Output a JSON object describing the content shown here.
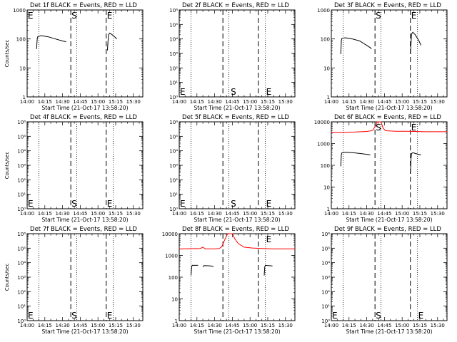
{
  "colors": {
    "events": "#000000",
    "lld": "#ff0000",
    "background": "#ffffff"
  },
  "x_axis": {
    "min_minutes": 0,
    "max_minutes": 98,
    "tick_minutes": [
      0,
      15,
      30,
      45,
      60,
      75,
      90
    ],
    "tick_labels": [
      "14:00",
      "14:15",
      "14:30",
      "14:45",
      "15:00",
      "15:15",
      "15:30"
    ],
    "label": "Start Time (21-Oct-17 13:58:20)"
  },
  "chart_data": [
    {
      "type": "line",
      "title": "Det 1f BLACK = Events, RED = LLD",
      "ylabel": "Counts/sec",
      "yscale": "log",
      "ylim": [
        1,
        1000
      ],
      "ytick_labels": [
        "1",
        "10",
        "100",
        "1000"
      ],
      "dotted_x": [
        10,
        42,
        73
      ],
      "dashed_x": [
        37,
        67
      ],
      "markers": [
        {
          "text": "E",
          "x": 0,
          "pos": "top"
        },
        {
          "text": "S",
          "x": 37,
          "pos": "top"
        },
        {
          "text": "E",
          "x": 67,
          "pos": "top"
        }
      ],
      "series": [
        {
          "color": "events",
          "points": [
            [
              8,
              45
            ],
            [
              8.5,
              100
            ],
            [
              9,
              120
            ],
            [
              12,
              130
            ],
            [
              18,
              118
            ],
            [
              24,
              100
            ],
            [
              30,
              85
            ],
            [
              33,
              80
            ]
          ]
        },
        {
          "color": "events",
          "points": [
            [
              68,
              40
            ],
            [
              68.5,
              80
            ],
            [
              69,
              140
            ],
            [
              70,
              160
            ],
            [
              72,
              140
            ],
            [
              75,
              110
            ],
            [
              76,
              100
            ]
          ]
        }
      ]
    },
    {
      "type": "line",
      "title": "Det 2f BLACK = Events, RED = LLD",
      "ylabel": "",
      "yscale": "log",
      "ylim": [
        1,
        1000000
      ],
      "ytick_labels": [
        "10⁰",
        "10¹",
        "10²",
        "10³",
        "10⁴",
        "10⁵",
        "10⁶"
      ],
      "dotted_x": [
        10,
        42,
        73
      ],
      "dashed_x": [
        37,
        67
      ],
      "markers": [
        {
          "text": "E",
          "x": 0,
          "pos": "bottom"
        },
        {
          "text": "S",
          "x": 43,
          "pos": "bottom"
        },
        {
          "text": "E",
          "x": 73,
          "pos": "bottom"
        }
      ],
      "series": []
    },
    {
      "type": "line",
      "title": "Det 3f BLACK = Events, RED = LLD",
      "ylabel": "",
      "yscale": "log",
      "ylim": [
        1,
        1000
      ],
      "ytick_labels": [
        "1",
        "10",
        "100",
        "1000"
      ],
      "dotted_x": [
        10,
        42,
        73
      ],
      "dashed_x": [
        37,
        67
      ],
      "markers": [
        {
          "text": "S",
          "x": 37,
          "pos": "top"
        },
        {
          "text": "E",
          "x": 67,
          "pos": "top"
        }
      ],
      "series": [
        {
          "color": "events",
          "points": [
            [
              8,
              30
            ],
            [
              8.5,
              90
            ],
            [
              9,
              105
            ],
            [
              12,
              110
            ],
            [
              18,
              100
            ],
            [
              24,
              85
            ],
            [
              30,
              60
            ],
            [
              33,
              50
            ],
            [
              34,
              45
            ]
          ]
        },
        {
          "color": "events",
          "points": [
            [
              67,
              30
            ],
            [
              67.5,
              70
            ],
            [
              68,
              150
            ],
            [
              69,
              170
            ],
            [
              71,
              140
            ],
            [
              74,
              90
            ],
            [
              76,
              60
            ]
          ]
        }
      ]
    },
    {
      "type": "line",
      "title": "Det 4f BLACK = Events, RED = LLD",
      "ylabel": "Counts/sec",
      "yscale": "log",
      "ylim": [
        1,
        1000000
      ],
      "ytick_labels": [
        "10⁰",
        "10¹",
        "10²",
        "10³",
        "10⁴",
        "10⁵",
        "10⁶"
      ],
      "dotted_x": [
        10,
        42,
        73
      ],
      "dashed_x": [
        37,
        67
      ],
      "markers": [
        {
          "text": "E",
          "x": 0,
          "pos": "bottom"
        },
        {
          "text": "S",
          "x": 37,
          "pos": "bottom"
        },
        {
          "text": "E",
          "x": 67,
          "pos": "bottom"
        }
      ],
      "series": []
    },
    {
      "type": "line",
      "title": "Det 5f BLACK = Events, RED = LLD",
      "ylabel": "",
      "yscale": "log",
      "ylim": [
        1,
        1000000
      ],
      "ytick_labels": [
        "10⁰",
        "10¹",
        "10²",
        "10³",
        "10⁴",
        "10⁵",
        "10⁶"
      ],
      "dotted_x": [
        10,
        42,
        73
      ],
      "dashed_x": [
        37,
        67
      ],
      "markers": [
        {
          "text": "E",
          "x": 0,
          "pos": "bottom"
        },
        {
          "text": "S",
          "x": 43,
          "pos": "bottom"
        },
        {
          "text": "E",
          "x": 73,
          "pos": "bottom"
        }
      ],
      "series": []
    },
    {
      "type": "line",
      "title": "Det 6f BLACK = Events, RED = LLD",
      "ylabel": "",
      "yscale": "log",
      "ylim": [
        1,
        10000
      ],
      "ytick_labels": [
        "1",
        "10",
        "100",
        "1000",
        "10000"
      ],
      "dotted_x": [
        10,
        42,
        73
      ],
      "dashed_x": [
        37,
        67
      ],
      "markers": [
        {
          "text": "S",
          "x": 37,
          "pos": "top"
        },
        {
          "text": "E",
          "x": 67,
          "pos": "top"
        }
      ],
      "series": [
        {
          "color": "lld",
          "points": [
            [
              0,
              3300
            ],
            [
              8,
              3300
            ],
            [
              20,
              3400
            ],
            [
              30,
              3600
            ],
            [
              33,
              3800
            ],
            [
              35,
              4000
            ],
            [
              37,
              6000
            ],
            [
              39,
              10000
            ],
            [
              42,
              10000
            ],
            [
              44,
              5000
            ],
            [
              46,
              3900
            ],
            [
              55,
              3700
            ],
            [
              65,
              3700
            ],
            [
              70,
              3600
            ],
            [
              80,
              3500
            ],
            [
              90,
              3500
            ],
            [
              98,
              3500
            ]
          ]
        },
        {
          "color": "events",
          "points": [
            [
              8,
              90
            ],
            [
              8.5,
              320
            ],
            [
              9,
              380
            ],
            [
              12,
              400
            ],
            [
              18,
              380
            ],
            [
              24,
              350
            ],
            [
              30,
              320
            ],
            [
              33,
              300
            ]
          ]
        },
        {
          "color": "events",
          "points": [
            [
              67,
              40
            ],
            [
              67.5,
              200
            ],
            [
              68,
              350
            ],
            [
              69,
              380
            ],
            [
              71,
              350
            ],
            [
              74,
              320
            ],
            [
              76,
              300
            ]
          ]
        }
      ]
    },
    {
      "type": "line",
      "title": "Det 7f BLACK = Events, RED = LLD",
      "ylabel": "Counts/sec",
      "yscale": "log",
      "ylim": [
        1,
        1000000
      ],
      "ytick_labels": [
        "10⁰",
        "10¹",
        "10²",
        "10³",
        "10⁴",
        "10⁵",
        "10⁶"
      ],
      "dotted_x": [
        10,
        42,
        73
      ],
      "dashed_x": [
        37,
        67
      ],
      "markers": [
        {
          "text": "E",
          "x": 0,
          "pos": "bottom"
        },
        {
          "text": "S",
          "x": 37,
          "pos": "bottom"
        },
        {
          "text": "E",
          "x": 67,
          "pos": "bottom"
        }
      ],
      "series": []
    },
    {
      "type": "line",
      "title": "Det 8f BLACK = Events, RED = LLD",
      "ylabel": "",
      "yscale": "log",
      "ylim": [
        1,
        10000
      ],
      "ytick_labels": [
        "1",
        "10",
        "100",
        "1000",
        "10000"
      ],
      "dotted_x": [
        10,
        42,
        73
      ],
      "dashed_x": [
        37,
        67
      ],
      "markers": [
        {
          "text": "E",
          "x": 73,
          "pos": "top"
        }
      ],
      "series": [
        {
          "color": "lld",
          "points": [
            [
              0,
              2000
            ],
            [
              18,
              2100
            ],
            [
              20,
              2400
            ],
            [
              22,
              2000
            ],
            [
              30,
              2000
            ],
            [
              34,
              2100
            ],
            [
              36,
              2500
            ],
            [
              39,
              6000
            ],
            [
              41,
              10000
            ],
            [
              45,
              10000
            ],
            [
              47,
              6000
            ],
            [
              50,
              3500
            ],
            [
              55,
              2400
            ],
            [
              62,
              2200
            ],
            [
              70,
              2100
            ],
            [
              80,
              2000
            ],
            [
              90,
              2000
            ],
            [
              98,
              2000
            ]
          ]
        },
        {
          "color": "events",
          "points": [
            [
              10,
              120
            ],
            [
              10.5,
              300
            ],
            [
              11,
              350
            ],
            [
              16,
              350
            ]
          ]
        },
        {
          "color": "events",
          "points": [
            [
              20,
              300
            ],
            [
              21,
              340
            ],
            [
              27,
              330
            ],
            [
              29,
              300
            ]
          ]
        },
        {
          "color": "events",
          "points": [
            [
              72,
              120
            ],
            [
              72.5,
              300
            ],
            [
              73,
              350
            ],
            [
              79,
              330
            ]
          ]
        }
      ]
    },
    {
      "type": "line",
      "title": "Det 9f BLACK = Events, RED = LLD",
      "ylabel": "",
      "yscale": "log",
      "ylim": [
        1,
        1000000
      ],
      "ytick_labels": [
        "10⁰",
        "10¹",
        "10²",
        "10³",
        "10⁴",
        "10⁵",
        "10⁶"
      ],
      "dotted_x": [
        10,
        42,
        73
      ],
      "dashed_x": [
        37,
        67
      ],
      "markers": [
        {
          "text": "E",
          "x": 0,
          "pos": "bottom"
        },
        {
          "text": "S",
          "x": 37,
          "pos": "bottom"
        },
        {
          "text": "E",
          "x": 73,
          "pos": "bottom"
        }
      ],
      "series": []
    }
  ]
}
